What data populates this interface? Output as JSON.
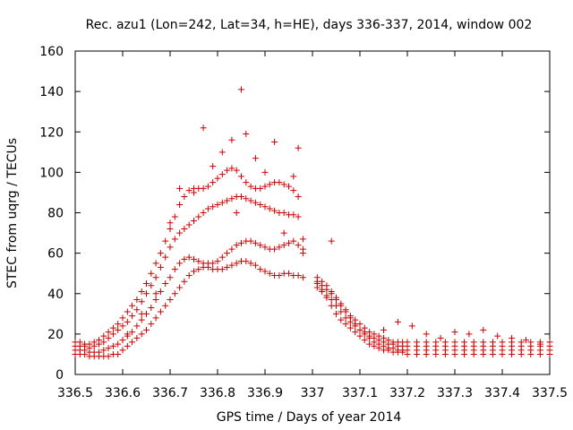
{
  "chart_data": {
    "type": "scatter",
    "title": "Rec. azu1 (Lon=242, Lat=34, h=HE), days 336-337, 2014, window 002",
    "xlabel": "GPS time / Days of year 2014",
    "ylabel": "STEC from uqrg / TECUs",
    "xlim": [
      336.5,
      337.5
    ],
    "ylim": [
      0,
      160
    ],
    "xticks": [
      "336.5",
      "336.6",
      "336.7",
      "336.8",
      "336.9",
      "337",
      "337.1",
      "337.2",
      "337.3",
      "337.4",
      "337.5"
    ],
    "yticks": [
      "0",
      "20",
      "40",
      "60",
      "80",
      "100",
      "120",
      "140",
      "160"
    ],
    "grid": false,
    "legend": "none",
    "marker": "plus",
    "color": "#cc0000",
    "series": [
      {
        "x": [
          336.5,
          336.51,
          336.52,
          336.53,
          336.54,
          336.55,
          336.56,
          336.57,
          336.58,
          336.59,
          336.6,
          336.61,
          336.62,
          336.63,
          336.64,
          336.65,
          336.66,
          336.67,
          336.68,
          336.69,
          336.7,
          336.71,
          336.72,
          336.73,
          336.74,
          336.75,
          336.76,
          336.77,
          336.78,
          336.79,
          336.8,
          336.81,
          336.82,
          336.83,
          336.84,
          336.85,
          336.86,
          336.87,
          336.88,
          336.89,
          336.9,
          336.91,
          336.92,
          336.93,
          336.94,
          336.95,
          336.96,
          336.97,
          336.98,
          337.01,
          337.02,
          337.03,
          337.04,
          337.05,
          337.06,
          337.07,
          337.08,
          337.09,
          337.1,
          337.11,
          337.12,
          337.13,
          337.14,
          337.15,
          337.16,
          337.17,
          337.18,
          337.19,
          337.2,
          337.22,
          337.24,
          337.26,
          337.28,
          337.3,
          337.32,
          337.34,
          337.36,
          337.38,
          337.4,
          337.42,
          337.44,
          337.46,
          337.48,
          337.5
        ],
        "y": [
          10,
          10,
          10,
          9,
          9,
          9,
          9,
          9,
          10,
          10,
          12,
          14,
          16,
          18,
          20,
          22,
          25,
          28,
          31,
          34,
          37,
          40,
          43,
          46,
          49,
          51,
          52,
          53,
          53,
          52,
          52,
          52,
          53,
          54,
          55,
          56,
          56,
          55,
          54,
          52,
          51,
          50,
          49,
          49,
          50,
          50,
          49,
          49,
          48,
          45,
          42,
          38,
          34,
          30,
          27,
          25,
          23,
          21,
          19,
          17,
          15,
          14,
          13,
          12,
          12,
          11,
          11,
          11,
          10,
          10,
          10,
          10,
          10,
          10,
          10,
          10,
          10,
          10,
          10,
          10,
          10,
          10,
          10,
          10
        ]
      },
      {
        "x": [
          336.5,
          336.51,
          336.52,
          336.53,
          336.54,
          336.55,
          336.56,
          336.57,
          336.58,
          336.59,
          336.6,
          336.61,
          336.62,
          336.63,
          336.64,
          336.65,
          336.66,
          336.67,
          336.68,
          336.69,
          336.7,
          336.71,
          336.72,
          336.73,
          336.74,
          336.75,
          336.76,
          336.77,
          336.78,
          336.79,
          336.8,
          336.81,
          336.82,
          336.83,
          336.84,
          336.85,
          336.86,
          336.87,
          336.88,
          336.89,
          336.9,
          336.91,
          336.92,
          336.93,
          336.94,
          336.95,
          336.96,
          336.97,
          336.98,
          337.01,
          337.02,
          337.03,
          337.04,
          337.05,
          337.06,
          337.07,
          337.08,
          337.09,
          337.1,
          337.11,
          337.12,
          337.13,
          337.14,
          337.15,
          337.16,
          337.17,
          337.18,
          337.19,
          337.2,
          337.22,
          337.24,
          337.26,
          337.28,
          337.3,
          337.32,
          337.34,
          337.36,
          337.38,
          337.4,
          337.42,
          337.44,
          337.46,
          337.48,
          337.5
        ],
        "y": [
          12,
          12,
          12,
          11,
          11,
          11,
          12,
          13,
          14,
          15,
          17,
          19,
          21,
          24,
          27,
          30,
          33,
          37,
          41,
          45,
          48,
          52,
          55,
          57,
          58,
          57,
          56,
          55,
          55,
          55,
          56,
          58,
          60,
          62,
          64,
          65,
          66,
          66,
          65,
          64,
          63,
          62,
          62,
          63,
          64,
          65,
          66,
          64,
          62,
          46,
          44,
          42,
          40,
          37,
          34,
          31,
          28,
          25,
          22,
          20,
          18,
          16,
          15,
          14,
          13,
          13,
          12,
          12,
          12,
          12,
          12,
          12,
          12,
          12,
          12,
          12,
          12,
          12,
          12,
          12,
          12,
          12,
          12,
          12
        ]
      },
      {
        "x": [
          336.5,
          336.51,
          336.52,
          336.53,
          336.54,
          336.55,
          336.56,
          336.57,
          336.58,
          336.59,
          336.6,
          336.61,
          336.62,
          336.63,
          336.64,
          336.65,
          336.66,
          336.67,
          336.68,
          336.69,
          336.7,
          336.71,
          336.72,
          336.73,
          336.74,
          336.75,
          336.76,
          336.77,
          336.78,
          336.79,
          336.8,
          336.81,
          336.82,
          336.83,
          336.84,
          336.85,
          336.86,
          336.87,
          336.88,
          336.89,
          336.9,
          336.91,
          336.92,
          336.93,
          336.94,
          336.95,
          336.96,
          336.97,
          336.98,
          337.01,
          337.02,
          337.03,
          337.04,
          337.05,
          337.06,
          337.07,
          337.08,
          337.09,
          337.1,
          337.11,
          337.12,
          337.13,
          337.14,
          337.15,
          337.16,
          337.17,
          337.18,
          337.19,
          337.2,
          337.22,
          337.24,
          337.26,
          337.28,
          337.3,
          337.32,
          337.34,
          337.36,
          337.38,
          337.4,
          337.42,
          337.44,
          337.46,
          337.48,
          337.5
        ],
        "y": [
          14,
          14,
          14,
          13,
          14,
          15,
          16,
          18,
          20,
          22,
          24,
          26,
          29,
          32,
          36,
          40,
          44,
          48,
          53,
          58,
          63,
          67,
          70,
          72,
          74,
          76,
          78,
          80,
          82,
          83,
          84,
          85,
          86,
          87,
          88,
          88,
          87,
          86,
          85,
          84,
          83,
          82,
          81,
          80,
          80,
          79,
          79,
          78,
          60,
          43,
          41,
          39,
          37,
          34,
          31,
          28,
          26,
          24,
          22,
          21,
          19,
          18,
          17,
          16,
          15,
          15,
          14,
          14,
          14,
          14,
          14,
          14,
          14,
          14,
          14,
          14,
          14,
          14,
          14,
          14,
          14,
          14,
          14,
          14
        ]
      },
      {
        "x": [
          336.5,
          336.51,
          336.52,
          336.53,
          336.54,
          336.55,
          336.56,
          336.57,
          336.58,
          336.59,
          336.6,
          336.61,
          336.62,
          336.63,
          336.64,
          336.65,
          336.66,
          336.67,
          336.68,
          336.69,
          336.7,
          336.71,
          336.72,
          336.73,
          336.74,
          336.75,
          336.76,
          336.77,
          336.78,
          336.79,
          336.8,
          336.81,
          336.82,
          336.83,
          336.84,
          336.85,
          336.86,
          336.87,
          336.88,
          336.89,
          336.9,
          336.91,
          336.92,
          336.93,
          336.94,
          336.95,
          336.96,
          336.97,
          336.98,
          337.01,
          337.02,
          337.03,
          337.04,
          337.05,
          337.06,
          337.07,
          337.08,
          337.09,
          337.1,
          337.11,
          337.12,
          337.13,
          337.14,
          337.15,
          337.16,
          337.17,
          337.18,
          337.19,
          337.2,
          337.22,
          337.24,
          337.26,
          337.28,
          337.3,
          337.32,
          337.34,
          337.36,
          337.38,
          337.4,
          337.42,
          337.44,
          337.46,
          337.48,
          337.5
        ],
        "y": [
          16,
          16,
          15,
          15,
          16,
          17,
          19,
          21,
          23,
          25,
          28,
          31,
          34,
          37,
          41,
          45,
          50,
          55,
          60,
          66,
          72,
          78,
          84,
          88,
          91,
          92,
          92,
          92,
          93,
          95,
          97,
          99,
          101,
          102,
          101,
          98,
          95,
          93,
          92,
          92,
          93,
          94,
          95,
          95,
          94,
          93,
          91,
          88,
          67,
          48,
          46,
          44,
          41,
          38,
          35,
          32,
          29,
          27,
          25,
          23,
          21,
          20,
          19,
          18,
          17,
          16,
          16,
          16,
          16,
          16,
          16,
          16,
          16,
          16,
          16,
          16,
          16,
          16,
          16,
          16,
          16,
          16,
          16,
          16
        ]
      },
      {
        "x": [
          336.61,
          336.64,
          336.67,
          336.7,
          336.72,
          336.75,
          336.77,
          336.79,
          336.81,
          336.83,
          336.84,
          336.85,
          336.86,
          336.88,
          336.9,
          336.92,
          336.94,
          336.96,
          336.97,
          337.04,
          337.15,
          337.18,
          337.21,
          337.24,
          337.27,
          337.3,
          337.33,
          337.36,
          337.39,
          337.42,
          337.45,
          337.48
        ],
        "y": [
          20,
          30,
          40,
          75,
          92,
          90,
          122,
          103,
          110,
          116,
          80,
          141,
          119,
          107,
          100,
          115,
          70,
          98,
          112,
          66,
          22,
          26,
          24,
          20,
          18,
          21,
          20,
          22,
          19,
          18,
          17,
          15
        ]
      }
    ]
  }
}
